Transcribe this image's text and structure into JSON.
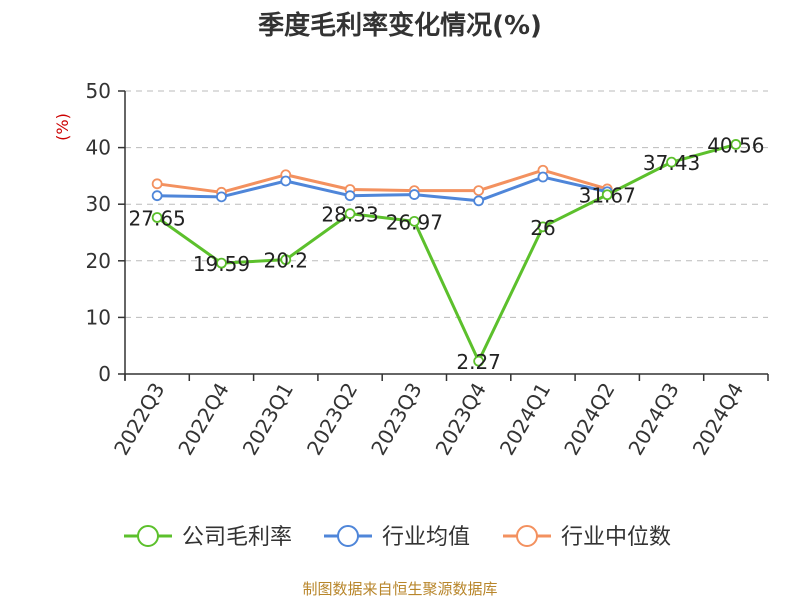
{
  "chart_data": {
    "type": "line",
    "title": "季度毛利率变化情况(%)",
    "ylabel": "(%)",
    "ylim": [
      0,
      50
    ],
    "yticks": [
      0,
      10,
      20,
      30,
      40,
      50
    ],
    "grid": "horizontal-dashed",
    "legend_position": "bottom",
    "categories": [
      "2022Q3",
      "2022Q4",
      "2023Q1",
      "2023Q2",
      "2023Q3",
      "2023Q4",
      "2024Q1",
      "2024Q2",
      "2024Q3",
      "2024Q4"
    ],
    "series": [
      {
        "name": "公司毛利率",
        "color": "#5cc02c",
        "values": [
          27.65,
          19.59,
          20.2,
          28.33,
          26.97,
          2.27,
          26,
          31.67,
          37.43,
          40.56
        ],
        "labels": [
          "27.65",
          "19.59",
          "20.2",
          "28.33",
          "26.97",
          "2.27",
          "26",
          "31.67",
          "37.43",
          "40.56"
        ]
      },
      {
        "name": "行业均值",
        "color": "#4f86d9",
        "values": [
          31.5,
          31.3,
          34.1,
          31.5,
          31.7,
          30.6,
          34.8,
          32.2,
          null,
          null
        ]
      },
      {
        "name": "行业中位数",
        "color": "#f3915f",
        "values": [
          33.6,
          32.1,
          35.2,
          32.6,
          32.4,
          32.4,
          36.0,
          32.7,
          null,
          null
        ]
      }
    ],
    "source": "制图数据来自恒生聚源数据库"
  }
}
